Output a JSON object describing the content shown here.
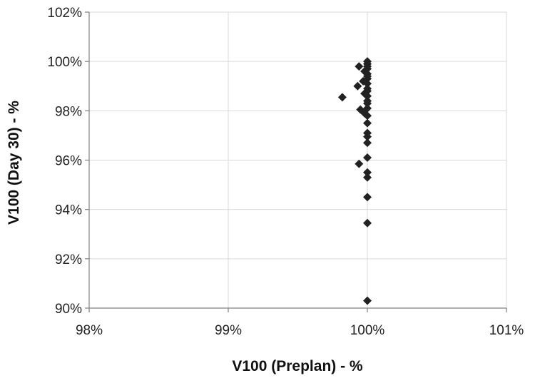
{
  "chart_data": {
    "type": "scatter",
    "title": "",
    "xlabel": "V100 (Preplan) - %",
    "ylabel": "V100 (Day 30) - %",
    "xlim": [
      98,
      101
    ],
    "ylim": [
      90,
      102
    ],
    "x_ticks": [
      98,
      99,
      100,
      101
    ],
    "x_tick_labels": [
      "98%",
      "99%",
      "100%",
      "101%"
    ],
    "y_ticks": [
      90,
      92,
      94,
      96,
      98,
      100,
      102
    ],
    "y_tick_labels": [
      "90%",
      "92%",
      "94%",
      "96%",
      "98%",
      "100%",
      "102%"
    ],
    "grid": true,
    "legend": "none",
    "marker": "diamond",
    "marker_color": "#222222",
    "series": [
      {
        "points": [
          [
            100.0,
            100.0
          ],
          [
            100.0,
            99.9
          ],
          [
            100.0,
            99.8
          ],
          [
            99.94,
            99.8
          ],
          [
            100.0,
            99.7
          ],
          [
            99.98,
            99.6
          ],
          [
            100.0,
            99.5
          ],
          [
            100.0,
            99.4
          ],
          [
            100.0,
            99.3
          ],
          [
            99.97,
            99.2
          ],
          [
            100.0,
            99.1
          ],
          [
            99.93,
            99.0
          ],
          [
            100.0,
            98.9
          ],
          [
            100.0,
            98.8
          ],
          [
            99.98,
            98.7
          ],
          [
            100.0,
            98.6
          ],
          [
            99.82,
            98.55
          ],
          [
            100.0,
            98.4
          ],
          [
            100.0,
            98.3
          ],
          [
            100.0,
            98.1
          ],
          [
            99.95,
            98.05
          ],
          [
            99.98,
            97.9
          ],
          [
            100.0,
            97.8
          ],
          [
            100.0,
            97.5
          ],
          [
            100.0,
            97.1
          ],
          [
            100.0,
            96.95
          ],
          [
            100.0,
            96.7
          ],
          [
            100.0,
            96.1
          ],
          [
            99.94,
            95.85
          ],
          [
            100.0,
            95.5
          ],
          [
            100.0,
            95.3
          ],
          [
            100.0,
            94.5
          ],
          [
            100.0,
            93.45
          ],
          [
            100.0,
            90.3
          ]
        ]
      }
    ]
  }
}
